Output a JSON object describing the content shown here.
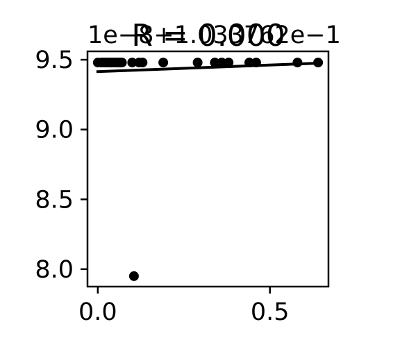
{
  "chart_data": {
    "type": "scatter",
    "title": "R = 0.000",
    "xlabel": "",
    "ylabel": "",
    "xlim": [
      -0.03,
      0.67
    ],
    "ylim": [
      7.875,
      9.56
    ],
    "x_ticks": [
      0.0,
      0.5
    ],
    "x_tick_labels": [
      "0.0",
      "0.5"
    ],
    "y_ticks": [
      8.0,
      8.5,
      9.0,
      9.5
    ],
    "y_tick_labels": [
      "8.0",
      "8.5",
      "9.0",
      "9.5"
    ],
    "y_offset_label": "1e−8+1.033762e−1",
    "grid": false,
    "legend": "none",
    "points": [
      {
        "x": 0.0,
        "y": 9.48
      },
      {
        "x": 0.01,
        "y": 9.48
      },
      {
        "x": 0.015,
        "y": 9.48
      },
      {
        "x": 0.02,
        "y": 9.48
      },
      {
        "x": 0.025,
        "y": 9.48
      },
      {
        "x": 0.03,
        "y": 9.48
      },
      {
        "x": 0.035,
        "y": 9.48
      },
      {
        "x": 0.04,
        "y": 9.48
      },
      {
        "x": 0.045,
        "y": 9.48
      },
      {
        "x": 0.05,
        "y": 9.48
      },
      {
        "x": 0.055,
        "y": 9.48
      },
      {
        "x": 0.06,
        "y": 9.48
      },
      {
        "x": 0.065,
        "y": 9.48
      },
      {
        "x": 0.07,
        "y": 9.48
      },
      {
        "x": 0.1,
        "y": 9.48
      },
      {
        "x": 0.12,
        "y": 9.48
      },
      {
        "x": 0.13,
        "y": 9.48
      },
      {
        "x": 0.19,
        "y": 9.48
      },
      {
        "x": 0.29,
        "y": 9.48
      },
      {
        "x": 0.34,
        "y": 9.48
      },
      {
        "x": 0.36,
        "y": 9.48
      },
      {
        "x": 0.38,
        "y": 9.48
      },
      {
        "x": 0.44,
        "y": 9.48
      },
      {
        "x": 0.46,
        "y": 9.48
      },
      {
        "x": 0.58,
        "y": 9.48
      },
      {
        "x": 0.64,
        "y": 9.48
      },
      {
        "x": 0.105,
        "y": 7.95
      }
    ],
    "fit_line": {
      "x": [
        0.0,
        0.64
      ],
      "y": [
        9.415,
        9.475
      ]
    },
    "colors": {
      "points": "#000000",
      "line": "#000000"
    }
  }
}
